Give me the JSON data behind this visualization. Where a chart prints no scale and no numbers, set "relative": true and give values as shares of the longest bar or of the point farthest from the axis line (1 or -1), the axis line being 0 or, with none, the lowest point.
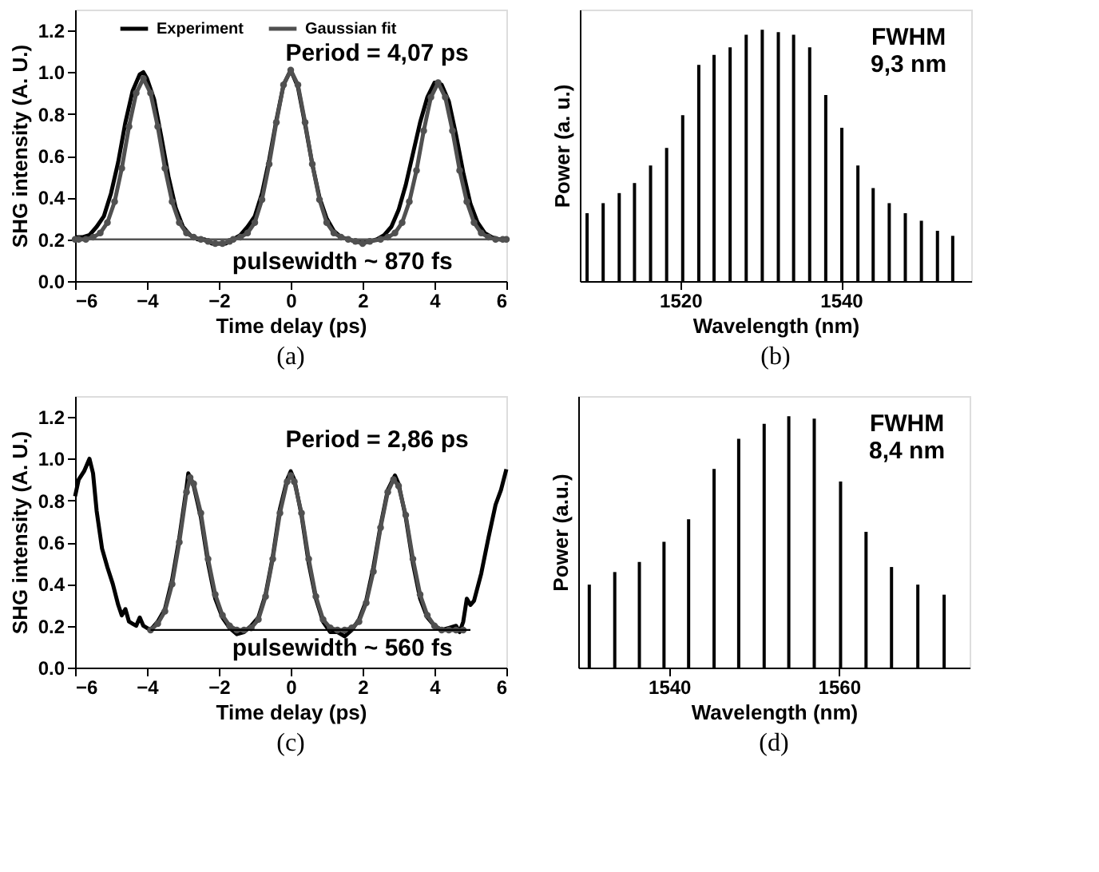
{
  "chart_data": [
    {
      "type": "line",
      "title": "(a)",
      "xlabel": "Time delay (ps)",
      "ylabel": "SHG intensity (A. U.)",
      "xlim": [
        -6,
        6
      ],
      "ylim": [
        0,
        1.3
      ],
      "xticks": [
        -6,
        -4,
        -2,
        0,
        2,
        4,
        6
      ],
      "yticks": [
        {
          "value": 0,
          "label": "0.0"
        },
        {
          "value": 0.2,
          "label": "0.2"
        },
        {
          "value": 0.4,
          "label": "0.4"
        },
        {
          "value": 0.6,
          "label": "0.6"
        },
        {
          "value": 0.8,
          "label": "0.8"
        },
        {
          "value": 1,
          "label": "1.0"
        },
        {
          "value": 1.2,
          "label": "1.2"
        }
      ],
      "legend": "top",
      "grid": false,
      "annotations": [
        "Period = 4,07 ps",
        "pulsewidth ~ 870 fs"
      ],
      "series": [
        {
          "name": "Experiment",
          "color": "#000000",
          "marker": "none",
          "x": [
            -6.0,
            -5.8,
            -5.6,
            -5.4,
            -5.2,
            -5.0,
            -4.8,
            -4.6,
            -4.4,
            -4.2,
            -4.1,
            -4.0,
            -3.8,
            -3.6,
            -3.4,
            -3.2,
            -3.0,
            -2.8,
            -2.6,
            -2.4,
            -2.2,
            -2.0,
            -1.8,
            -1.6,
            -1.4,
            -1.2,
            -1.0,
            -0.8,
            -0.6,
            -0.4,
            -0.2,
            0.0,
            0.2,
            0.4,
            0.6,
            0.8,
            1.0,
            1.2,
            1.4,
            1.6,
            1.8,
            2.0,
            2.2,
            2.4,
            2.6,
            2.8,
            3.0,
            3.2,
            3.4,
            3.6,
            3.8,
            4.0,
            4.1,
            4.2,
            4.4,
            4.6,
            4.8,
            5.0,
            5.2,
            5.4,
            5.6,
            5.8,
            6.0
          ],
          "values": [
            0.21,
            0.21,
            0.22,
            0.26,
            0.31,
            0.42,
            0.57,
            0.76,
            0.91,
            0.99,
            1.0,
            0.97,
            0.87,
            0.69,
            0.5,
            0.35,
            0.26,
            0.22,
            0.2,
            0.2,
            0.18,
            0.18,
            0.18,
            0.2,
            0.22,
            0.26,
            0.31,
            0.42,
            0.58,
            0.77,
            0.94,
            1.01,
            0.93,
            0.75,
            0.56,
            0.4,
            0.3,
            0.24,
            0.21,
            0.2,
            0.19,
            0.19,
            0.19,
            0.2,
            0.22,
            0.26,
            0.34,
            0.46,
            0.61,
            0.76,
            0.88,
            0.95,
            0.95,
            0.94,
            0.86,
            0.7,
            0.52,
            0.37,
            0.28,
            0.23,
            0.21,
            0.2,
            0.2
          ]
        },
        {
          "name": "Gaussian fit",
          "color": "#505050",
          "marker": "circle",
          "x": [
            -6.0,
            -5.9,
            -5.7,
            -5.5,
            -5.3,
            -5.1,
            -4.9,
            -4.7,
            -4.5,
            -4.3,
            -4.1,
            -3.9,
            -3.7,
            -3.5,
            -3.3,
            -3.1,
            -2.9,
            -2.7,
            -2.5,
            -2.3,
            -2.1,
            -1.9,
            -1.7,
            -1.6,
            -1.4,
            -1.2,
            -1.0,
            -0.8,
            -0.6,
            -0.4,
            -0.2,
            0.0,
            0.2,
            0.4,
            0.6,
            0.8,
            1.0,
            1.2,
            1.4,
            1.6,
            1.8,
            2.0,
            2.2,
            2.5,
            2.7,
            2.9,
            3.1,
            3.3,
            3.5,
            3.7,
            3.9,
            4.1,
            4.3,
            4.5,
            4.7,
            4.9,
            5.1,
            5.3,
            5.5,
            5.7,
            5.9,
            6.0
          ],
          "values": [
            0.2,
            0.2,
            0.2,
            0.21,
            0.23,
            0.28,
            0.38,
            0.54,
            0.74,
            0.9,
            0.97,
            0.9,
            0.74,
            0.54,
            0.38,
            0.28,
            0.23,
            0.21,
            0.2,
            0.19,
            0.18,
            0.18,
            0.19,
            0.2,
            0.21,
            0.23,
            0.28,
            0.39,
            0.56,
            0.76,
            0.94,
            1.01,
            0.94,
            0.76,
            0.56,
            0.39,
            0.28,
            0.23,
            0.21,
            0.2,
            0.19,
            0.18,
            0.19,
            0.2,
            0.21,
            0.23,
            0.28,
            0.38,
            0.53,
            0.72,
            0.88,
            0.95,
            0.88,
            0.72,
            0.53,
            0.38,
            0.28,
            0.23,
            0.21,
            0.2,
            0.2,
            0.2
          ]
        },
        {
          "color": "#555555",
          "marker": "none",
          "x": [
            -6,
            6
          ],
          "values": [
            0.2,
            0.2
          ]
        }
      ]
    },
    {
      "type": "bar",
      "title": "(b)",
      "xlabel": "Wavelength (nm)",
      "ylabel": "Power (a. u.)",
      "relative": true,
      "tick_labels": "x",
      "xlim": [
        1507.5,
        1556.2
      ],
      "xticks": [
        1520,
        1540
      ],
      "grid": false,
      "annotations": [
        "FWHM\n9,3 nm"
      ],
      "color": "#000000",
      "x": [
        1508.4,
        1510.4,
        1512.4,
        1514.3,
        1516.3,
        1518.3,
        1520.3,
        1522.3,
        1524.2,
        1526.2,
        1528.2,
        1530.2,
        1532.2,
        1534.1,
        1536.1,
        1538.1,
        1540.1,
        1542.1,
        1544.0,
        1546.0,
        1548.0,
        1550.0,
        1552.0,
        1553.9
      ],
      "values": [
        0.27,
        0.31,
        0.35,
        0.39,
        0.46,
        0.53,
        0.66,
        0.86,
        0.9,
        0.93,
        0.98,
        1.0,
        0.99,
        0.98,
        0.93,
        0.74,
        0.61,
        0.46,
        0.37,
        0.31,
        0.27,
        0.24,
        0.2,
        0.18
      ]
    },
    {
      "type": "line",
      "title": "(c)",
      "xlabel": "Time delay (ps)",
      "ylabel": "SHG intensity (A. U.)",
      "xlim": [
        -6,
        6
      ],
      "ylim": [
        0,
        1.3
      ],
      "xticks": [
        -6,
        -4,
        -2,
        0,
        2,
        4,
        6
      ],
      "yticks": [
        {
          "value": 0,
          "label": "0.0"
        },
        {
          "value": 0.2,
          "label": "0.2"
        },
        {
          "value": 0.4,
          "label": "0.4"
        },
        {
          "value": 0.6,
          "label": "0.6"
        },
        {
          "value": 0.8,
          "label": "0.8"
        },
        {
          "value": 1,
          "label": "1.0"
        },
        {
          "value": 1.2,
          "label": "1.2"
        }
      ],
      "legend": "top",
      "grid": false,
      "annotations": [
        "Period = 2,86 ps",
        "pulsewidth ~ 560 fs"
      ],
      "series": [
        {
          "name": "Experiment",
          "color": "#000000",
          "marker": "none",
          "x": [
            -6.0,
            -5.9,
            -5.75,
            -5.6,
            -5.5,
            -5.4,
            -5.25,
            -5.1,
            -4.95,
            -4.8,
            -4.7,
            -4.6,
            -4.5,
            -4.4,
            -4.3,
            -4.2,
            -4.1,
            -4.0,
            -3.9,
            -3.7,
            -3.5,
            -3.3,
            -3.1,
            -2.9,
            -2.85,
            -2.7,
            -2.5,
            -2.3,
            -2.1,
            -1.9,
            -1.7,
            -1.5,
            -1.3,
            -1.1,
            -0.9,
            -0.7,
            -0.5,
            -0.3,
            -0.1,
            0.0,
            0.1,
            0.3,
            0.5,
            0.7,
            0.9,
            1.1,
            1.3,
            1.5,
            1.7,
            1.9,
            2.1,
            2.3,
            2.5,
            2.7,
            2.9,
            3.0,
            3.2,
            3.4,
            3.6,
            3.8,
            4.0,
            4.2,
            4.4,
            4.6,
            4.7,
            4.8,
            4.9,
            5.0,
            5.1,
            5.3,
            5.5,
            5.7,
            5.85,
            6.0
          ],
          "values": [
            0.82,
            0.9,
            0.94,
            1.0,
            0.93,
            0.75,
            0.57,
            0.48,
            0.4,
            0.3,
            0.25,
            0.28,
            0.22,
            0.21,
            0.2,
            0.24,
            0.2,
            0.19,
            0.18,
            0.22,
            0.28,
            0.42,
            0.62,
            0.86,
            0.93,
            0.87,
            0.72,
            0.5,
            0.33,
            0.24,
            0.19,
            0.16,
            0.17,
            0.2,
            0.24,
            0.35,
            0.53,
            0.76,
            0.9,
            0.94,
            0.9,
            0.73,
            0.5,
            0.33,
            0.22,
            0.17,
            0.17,
            0.15,
            0.18,
            0.23,
            0.32,
            0.48,
            0.68,
            0.85,
            0.92,
            0.88,
            0.72,
            0.5,
            0.33,
            0.24,
            0.2,
            0.18,
            0.19,
            0.2,
            0.17,
            0.22,
            0.33,
            0.3,
            0.32,
            0.45,
            0.62,
            0.78,
            0.85,
            0.95
          ]
        },
        {
          "name": "Gaussian fit",
          "color": "#505050",
          "marker": "circle",
          "x": [
            -3.9,
            -3.7,
            -3.5,
            -3.3,
            -3.1,
            -2.9,
            -2.8,
            -2.7,
            -2.5,
            -2.3,
            -2.1,
            -1.9,
            -1.7,
            -1.5,
            -1.3,
            -1.1,
            -0.9,
            -0.7,
            -0.5,
            -0.3,
            -0.1,
            0.0,
            0.1,
            0.3,
            0.5,
            0.7,
            0.9,
            1.1,
            1.3,
            1.5,
            1.7,
            1.9,
            2.1,
            2.3,
            2.5,
            2.7,
            2.86,
            3.0,
            3.2,
            3.4,
            3.6,
            3.8,
            4.0,
            4.2,
            4.4,
            4.6,
            4.8
          ],
          "values": [
            0.18,
            0.21,
            0.27,
            0.4,
            0.6,
            0.84,
            0.91,
            0.88,
            0.74,
            0.52,
            0.35,
            0.25,
            0.2,
            0.18,
            0.18,
            0.19,
            0.23,
            0.34,
            0.52,
            0.74,
            0.89,
            0.92,
            0.89,
            0.74,
            0.52,
            0.34,
            0.23,
            0.19,
            0.18,
            0.18,
            0.19,
            0.22,
            0.31,
            0.46,
            0.67,
            0.84,
            0.9,
            0.87,
            0.73,
            0.52,
            0.35,
            0.25,
            0.2,
            0.18,
            0.18,
            0.18,
            0.18
          ]
        },
        {
          "color": "#000000",
          "marker": "none",
          "x": [
            -3.9,
            5.0
          ],
          "values": [
            0.18,
            0.18
          ]
        }
      ]
    },
    {
      "type": "bar",
      "title": "(d)",
      "xlabel": "Wavelength (nm)",
      "ylabel": "Power (a.u.)",
      "relative": true,
      "tick_labels": "x",
      "xlim": [
        1529.3,
        1575.4
      ],
      "xticks": [
        1540,
        1560
      ],
      "grid": false,
      "annotations": [
        "FWHM\n8,4 nm"
      ],
      "color": "#000000",
      "x": [
        1530.6,
        1533.6,
        1536.5,
        1539.4,
        1542.3,
        1545.3,
        1548.2,
        1551.2,
        1554.1,
        1557.1,
        1560.2,
        1563.2,
        1566.2,
        1569.3,
        1572.4
      ],
      "values": [
        0.33,
        0.38,
        0.42,
        0.5,
        0.59,
        0.79,
        0.91,
        0.97,
        1.0,
        0.99,
        0.74,
        0.54,
        0.4,
        0.33,
        0.29
      ]
    }
  ]
}
